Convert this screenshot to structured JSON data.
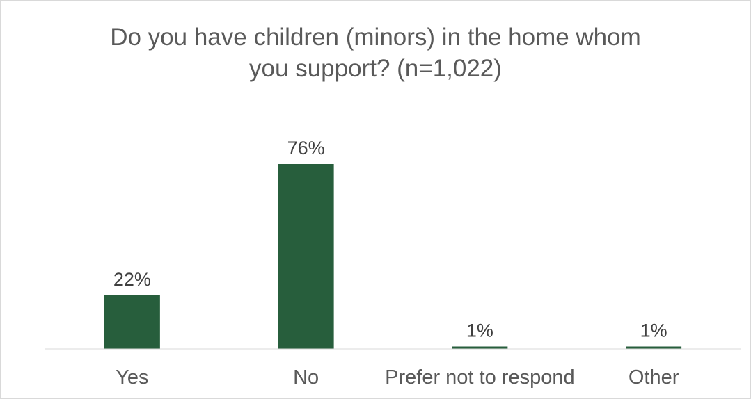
{
  "chart_data": {
    "type": "bar",
    "title_lines": [
      "Do you have children (minors) in the home whom",
      "you support? (n=1,022)"
    ],
    "categories": [
      "Yes",
      "No",
      "Prefer not to respond",
      "Other"
    ],
    "values": [
      22,
      76,
      1,
      1
    ],
    "data_labels": [
      "22%",
      "76%",
      "1%",
      "1%"
    ],
    "value_unit": "%",
    "ylim": [
      0,
      80
    ],
    "grid": false,
    "legend": "none",
    "colors": {
      "bar": "#275e3c",
      "axis": "#d9d9d9",
      "text": "#595959",
      "label": "#404040"
    }
  }
}
